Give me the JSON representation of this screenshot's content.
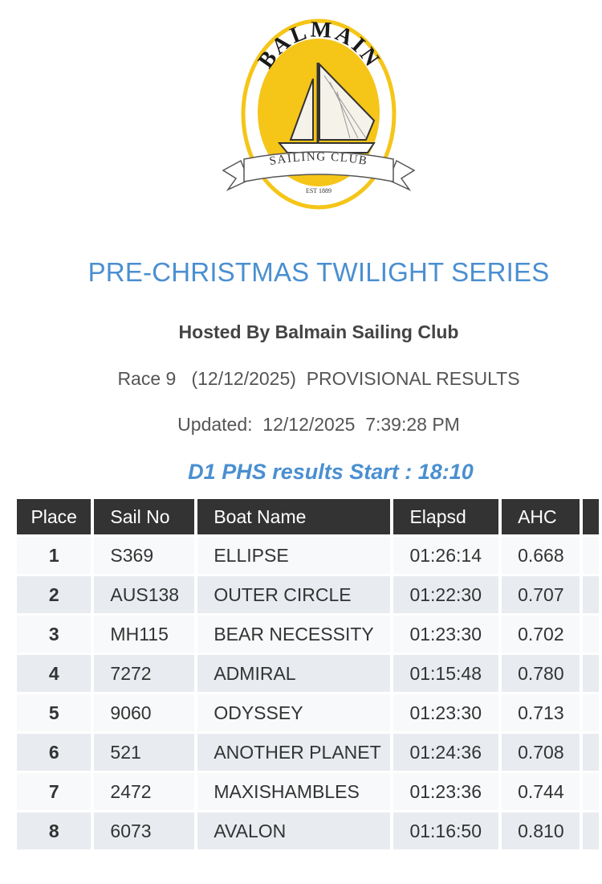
{
  "logo": {
    "top_text": "BALMAIN",
    "banner_text": "SAILING CLUB",
    "est_text": "EST 1889",
    "colors": {
      "yellow": "#f5c518",
      "black": "#1a1a1a"
    }
  },
  "header": {
    "title": "PRE-CHRISTMAS TWILIGHT SERIES",
    "hosted_by": "Hosted By Balmain Sailing Club",
    "race_info": "Race 9   (12/12/2025)  PROVISIONAL RESULTS",
    "updated": "Updated:  12/12/2025  7:39:28 PM"
  },
  "results": {
    "heading": "D1 PHS results Start : 18:10",
    "columns": [
      "Place",
      "Sail No",
      "Boat Name",
      "Elapsd",
      "AHC",
      ""
    ],
    "rows": [
      {
        "place": "1",
        "sail_no": "S369",
        "boat_name": "ELLIPSE",
        "elapsed": "01:26:14",
        "ahc": "0.668"
      },
      {
        "place": "2",
        "sail_no": "AUS138",
        "boat_name": "OUTER CIRCLE",
        "elapsed": "01:22:30",
        "ahc": "0.707"
      },
      {
        "place": "3",
        "sail_no": "MH115",
        "boat_name": "BEAR NECESSITY",
        "elapsed": "01:23:30",
        "ahc": "0.702"
      },
      {
        "place": "4",
        "sail_no": "7272",
        "boat_name": "ADMIRAL",
        "elapsed": "01:15:48",
        "ahc": "0.780"
      },
      {
        "place": "5",
        "sail_no": "9060",
        "boat_name": "ODYSSEY",
        "elapsed": "01:23:30",
        "ahc": "0.713"
      },
      {
        "place": "6",
        "sail_no": "521",
        "boat_name": "ANOTHER PLANET",
        "elapsed": "01:24:36",
        "ahc": "0.708"
      },
      {
        "place": "7",
        "sail_no": "2472",
        "boat_name": "MAXISHAMBLES",
        "elapsed": "01:23:36",
        "ahc": "0.744"
      },
      {
        "place": "8",
        "sail_no": "6073",
        "boat_name": "AVALON",
        "elapsed": "01:16:50",
        "ahc": "0.810"
      }
    ]
  },
  "colors": {
    "title_blue": "#4a8fd1",
    "header_bg": "#333333",
    "row_light": "#f8f9fa",
    "row_dark": "#e8ecf0"
  }
}
